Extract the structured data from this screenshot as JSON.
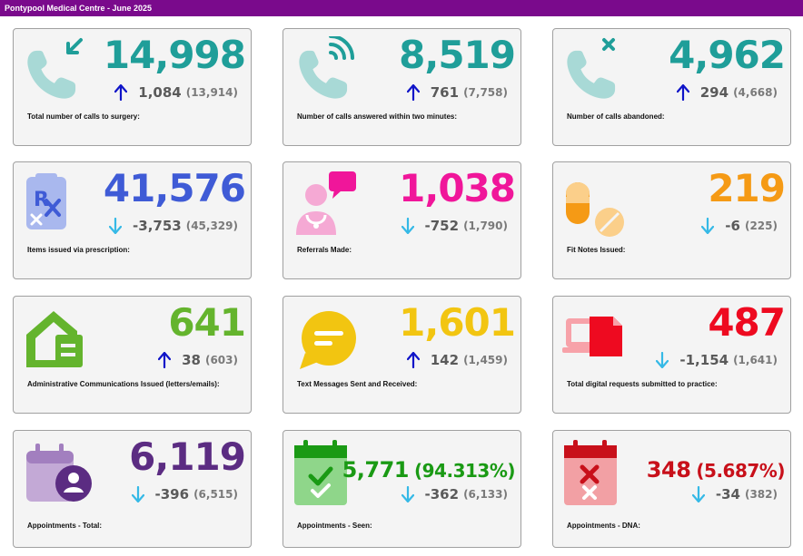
{
  "header": {
    "title": "Pontypool Medical Centre - June 2025"
  },
  "colors": {
    "header_bg": "#7a0a8c",
    "teal": "#1f9e99",
    "blue": "#3f5bd6",
    "pink": "#f0169a",
    "orange": "#f59a15",
    "green": "#64b42d",
    "yellow": "#f2c511",
    "red": "#ee0a20",
    "purple": "#5b2c82",
    "dark_green": "#1a9a14",
    "dark_red": "#c8101a",
    "arrow_up": "#0f14c8",
    "arrow_down": "#35b9e6"
  },
  "cards": [
    {
      "id": "calls-to-surgery",
      "icon": "incoming-call-icon",
      "value": "14,998",
      "delta": "1,084",
      "previous": "(13,914)",
      "trend": "up",
      "label": "Total number of calls to surgery:"
    },
    {
      "id": "calls-answered",
      "icon": "phone-answered-icon",
      "value": "8,519",
      "delta": "761",
      "previous": "(7,758)",
      "trend": "up",
      "label": "Number of calls answered within two minutes:"
    },
    {
      "id": "calls-abandoned",
      "icon": "phone-abandoned-icon",
      "value": "4,962",
      "delta": "294",
      "previous": "(4,668)",
      "trend": "up",
      "label": "Number of calls abandoned:"
    },
    {
      "id": "prescriptions",
      "icon": "prescription-icon",
      "value": "41,576",
      "delta": "-3,753",
      "previous": "(45,329)",
      "trend": "down",
      "label": "Items issued via prescription:"
    },
    {
      "id": "referrals",
      "icon": "doctor-referral-icon",
      "value": "1,038",
      "delta": "-752",
      "previous": "(1,790)",
      "trend": "down",
      "label": "Referrals Made:"
    },
    {
      "id": "fit-notes",
      "icon": "pills-icon",
      "value": "219",
      "delta": "-6",
      "previous": "(225)",
      "trend": "down",
      "label": "Fit Notes Issued:"
    },
    {
      "id": "admin-comms",
      "icon": "mailbox-icon",
      "value": "641",
      "delta": "38",
      "previous": "(603)",
      "trend": "up",
      "label": "Administrative Communications Issued (letters/emails):"
    },
    {
      "id": "text-messages",
      "icon": "chat-bubble-icon",
      "value": "1,601",
      "delta": "142",
      "previous": "(1,459)",
      "trend": "up",
      "label": "Text Messages Sent and Received:"
    },
    {
      "id": "digital-requests",
      "icon": "devices-icon",
      "value": "487",
      "delta": "-1,154",
      "previous": "(1,641)",
      "trend": "down",
      "label": "Total digital requests submitted to practice:"
    },
    {
      "id": "appointments-total",
      "icon": "calendar-user-icon",
      "value": "6,119",
      "delta": "-396",
      "previous": "(6,515)",
      "trend": "down",
      "label": "Appointments - Total:"
    },
    {
      "id": "appointments-seen",
      "icon": "calendar-check-icon",
      "value": "5,771",
      "percent": "(94.313%)",
      "delta": "-362",
      "previous": "(6,133)",
      "trend": "down",
      "label": "Appointments - Seen:"
    },
    {
      "id": "appointments-dna",
      "icon": "calendar-cross-icon",
      "value": "348",
      "percent": "(5.687%)",
      "delta": "-34",
      "previous": "(382)",
      "trend": "down",
      "label": "Appointments - DNA:"
    }
  ]
}
